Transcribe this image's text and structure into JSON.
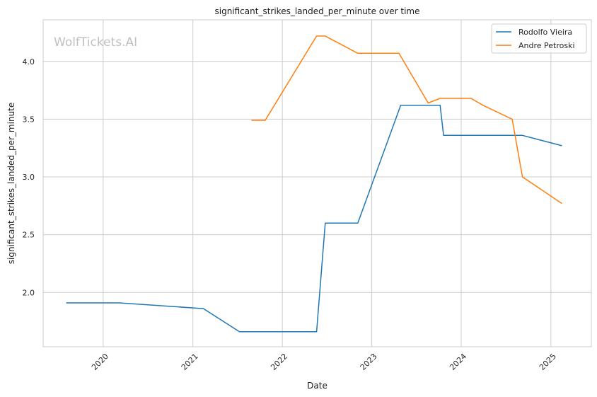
{
  "watermark": "WolfTickets.AI",
  "chart_data": {
    "type": "line",
    "title": "significant_strikes_landed_per_minute over time",
    "xlabel": "Date",
    "ylabel": "significant_strikes_landed_per_minute",
    "x_ticks": [
      "2020",
      "2021",
      "2022",
      "2023",
      "2024",
      "2025"
    ],
    "y_ticks": [
      "2.0",
      "2.5",
      "3.0",
      "3.5",
      "4.0"
    ],
    "xlim": [
      "2019-05-01",
      "2025-06-15"
    ],
    "ylim": [
      1.53,
      4.36
    ],
    "grid": true,
    "legend_position": "top-right",
    "series": [
      {
        "name": "Rodolfo Vieira",
        "color": "#1f77b4",
        "points": [
          [
            "2019-08-03",
            1.91
          ],
          [
            "2020-03-07",
            1.91
          ],
          [
            "2021-02-13",
            1.86
          ],
          [
            "2021-07-10",
            1.66
          ],
          [
            "2022-05-21",
            1.66
          ],
          [
            "2022-06-25",
            2.6
          ],
          [
            "2022-11-05",
            2.6
          ],
          [
            "2023-04-29",
            3.62
          ],
          [
            "2023-10-07",
            3.62
          ],
          [
            "2023-10-21",
            3.36
          ],
          [
            "2024-09-07",
            3.36
          ],
          [
            "2025-02-15",
            3.27
          ]
        ]
      },
      {
        "name": "Andre Petroski",
        "color": "#ff7f0e",
        "points": [
          [
            "2021-08-28",
            3.49
          ],
          [
            "2021-10-23",
            3.49
          ],
          [
            "2022-05-21",
            4.22
          ],
          [
            "2022-06-25",
            4.22
          ],
          [
            "2022-11-05",
            4.07
          ],
          [
            "2023-04-22",
            4.07
          ],
          [
            "2023-08-19",
            3.64
          ],
          [
            "2023-10-07",
            3.68
          ],
          [
            "2024-02-10",
            3.68
          ],
          [
            "2024-03-30",
            3.62
          ],
          [
            "2024-07-27",
            3.5
          ],
          [
            "2024-09-07",
            3.0
          ],
          [
            "2025-02-15",
            2.77
          ]
        ]
      }
    ]
  }
}
